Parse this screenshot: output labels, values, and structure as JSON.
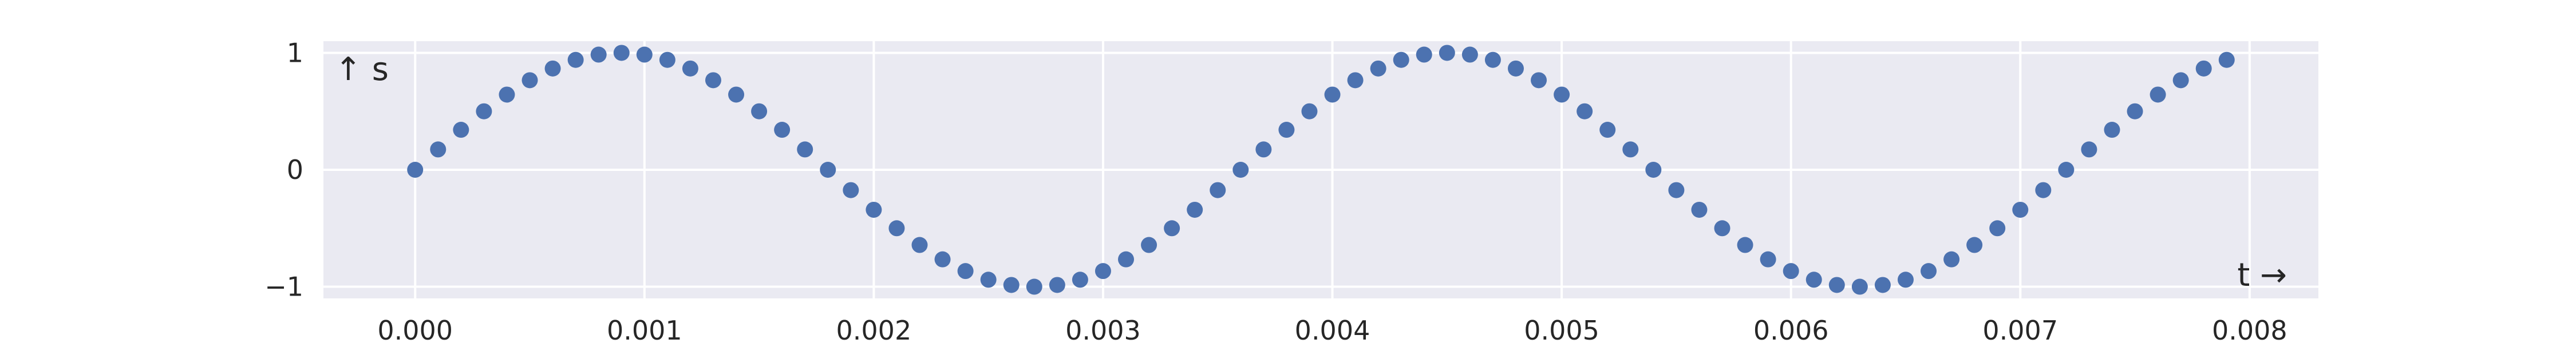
{
  "chart_data": {
    "type": "scatter",
    "title": "",
    "xlabel": "t →",
    "ylabel": "↑ s",
    "xlim": [
      -0.0004,
      0.0083
    ],
    "ylim": [
      -1.1,
      1.1
    ],
    "xticks": [
      0.0,
      0.001,
      0.002,
      0.003,
      0.004,
      0.005,
      0.006,
      0.007,
      0.008
    ],
    "xtick_labels": [
      "0.000",
      "0.001",
      "0.002",
      "0.003",
      "0.004",
      "0.005",
      "0.006",
      "0.007",
      "0.008"
    ],
    "yticks": [
      -1,
      0,
      1
    ],
    "ytick_labels": [
      "−1",
      "0",
      "1"
    ],
    "grid": true,
    "colors": {
      "background": "#eaeaf2",
      "grid": "#ffffff",
      "marker": "#4c72b0",
      "text": "#262626"
    },
    "series": [
      {
        "x": [
          0.0,
          0.0001,
          0.0002,
          0.0003,
          0.0004,
          0.0005,
          0.0006,
          0.0007,
          0.0008,
          0.0009,
          0.001,
          0.0011,
          0.0012,
          0.0013,
          0.0014,
          0.0015,
          0.0016,
          0.0017,
          0.0018,
          0.0019,
          0.002,
          0.0021,
          0.0022,
          0.0023,
          0.0024,
          0.0025,
          0.0026,
          0.0027,
          0.0028,
          0.0029,
          0.003,
          0.0031,
          0.0032,
          0.0033,
          0.0034,
          0.0035,
          0.0036,
          0.0037,
          0.0038,
          0.0039,
          0.004,
          0.0041,
          0.0042,
          0.0043,
          0.0044,
          0.0045,
          0.0046,
          0.0047,
          0.0048,
          0.0049,
          0.005,
          0.0051,
          0.0052,
          0.0053,
          0.0054,
          0.0055,
          0.0056,
          0.0057,
          0.0058,
          0.0059,
          0.006,
          0.0061,
          0.0062,
          0.0063,
          0.0064,
          0.0065,
          0.0066,
          0.0067,
          0.0068,
          0.0069,
          0.007,
          0.0071,
          0.0072,
          0.0073,
          0.0074,
          0.0075,
          0.0076,
          0.0077,
          0.0078,
          0.0079
        ],
        "y": [
          0.0,
          0.174,
          0.342,
          0.5,
          0.643,
          0.766,
          0.866,
          0.94,
          0.985,
          1.0,
          0.985,
          0.94,
          0.866,
          0.766,
          0.643,
          0.5,
          0.342,
          0.174,
          0.0,
          -0.174,
          -0.342,
          -0.5,
          -0.643,
          -0.766,
          -0.866,
          -0.94,
          -0.985,
          -1.0,
          -0.985,
          -0.94,
          -0.866,
          -0.766,
          -0.643,
          -0.5,
          -0.342,
          -0.174,
          0.0,
          0.174,
          0.342,
          0.5,
          0.643,
          0.766,
          0.866,
          0.94,
          0.985,
          1.0,
          0.985,
          0.94,
          0.866,
          0.766,
          0.643,
          0.5,
          0.342,
          0.174,
          0.0,
          -0.174,
          -0.342,
          -0.5,
          -0.643,
          -0.766,
          -0.866,
          -0.94,
          -0.985,
          -1.0,
          -0.985,
          -0.94,
          -0.866,
          -0.766,
          -0.643,
          -0.5,
          -0.342,
          -0.174,
          0.0,
          0.174,
          0.342,
          0.5,
          0.643,
          0.766,
          0.866,
          0.94
        ]
      }
    ]
  }
}
